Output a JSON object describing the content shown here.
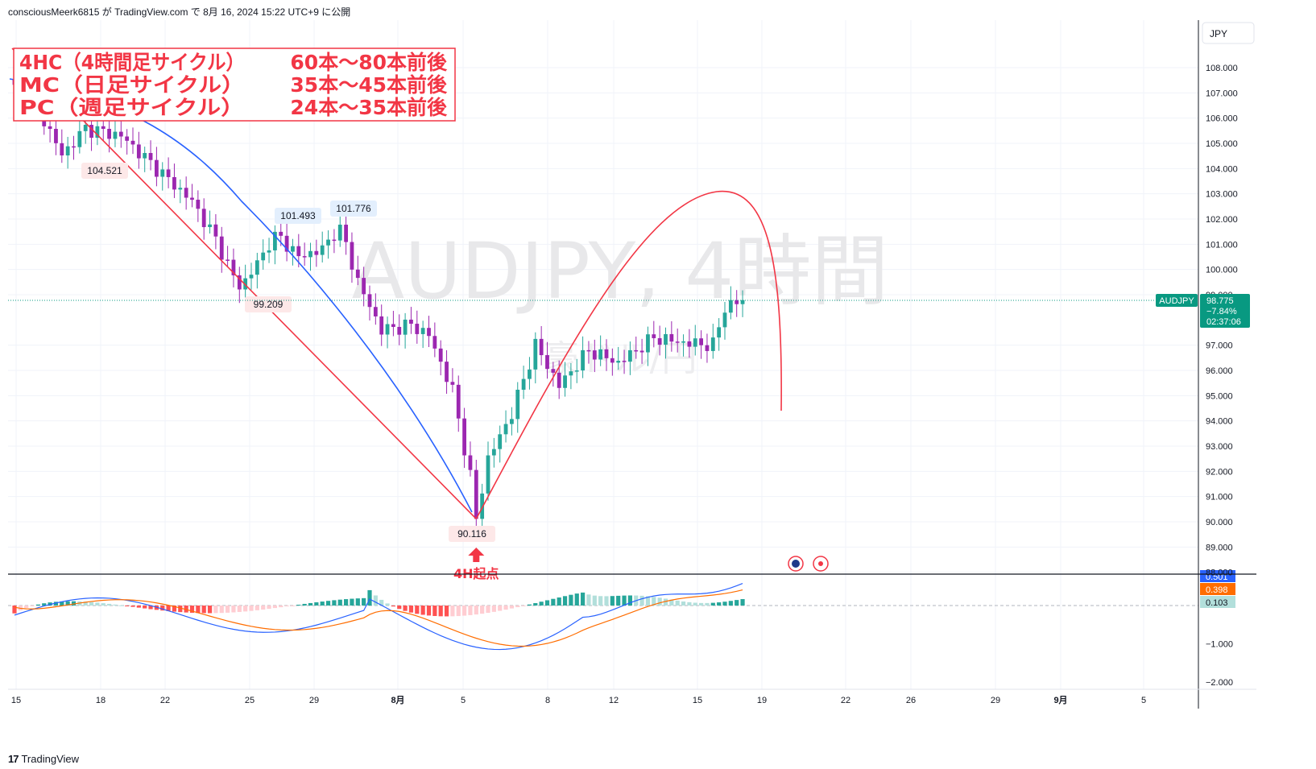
{
  "header": {
    "text": "consciousMeerk6815 が TradingView.com で 8月 16, 2024 15:22 UTC+9 に公開"
  },
  "currency_label": "JPY",
  "watermark": {
    "main": "AUDJPY, 4時間",
    "sub": "豪ドル/円"
  },
  "annotation_box": {
    "lines": [
      {
        "left": "4HC（4時間足サイクル）",
        "right": "60本〜80本前後"
      },
      {
        "left": "MC（日足サイクル）",
        "right": "35本〜45本前後"
      },
      {
        "left": "PC（週足サイクル）",
        "right": "24本〜35本前後"
      }
    ]
  },
  "current_price": {
    "symbol": "AUDJPY",
    "price": "98.775",
    "change": "−7.84%",
    "countdown": "02:37:06"
  },
  "footer": {
    "brand": "TradingView",
    "logo_glyph": "17"
  },
  "colors": {
    "bull": "#26a69a",
    "bear": "#9c27b0",
    "red_curve": "#f23645",
    "blue_ma": "#2962ff",
    "macd_line": "#2962ff",
    "signal_line": "#ff6d00"
  },
  "chart_data": [
    {
      "type": "candlestick",
      "title": "AUDJPY, 4時間",
      "ylabel": "JPY",
      "ylim": [
        87.8,
        108.8
      ],
      "y_ticks": [
        "108.000",
        "107.000",
        "106.000",
        "105.000",
        "104.000",
        "103.000",
        "102.000",
        "101.000",
        "100.000",
        "99.000",
        "97.000",
        "96.000",
        "95.000",
        "94.000",
        "93.000",
        "92.000",
        "91.000",
        "90.000",
        "89.000",
        "88.000"
      ],
      "x_ticks": [
        "15",
        "18",
        "22",
        "25",
        "29",
        "8月",
        "5",
        "8",
        "12",
        "15",
        "19",
        "22",
        "26",
        "29",
        "9月",
        "5"
      ],
      "price_labels": [
        {
          "label": "104.521",
          "value": 104.521
        },
        {
          "label": "99.209",
          "value": 99.209
        },
        {
          "label": "101.493",
          "value": 101.493
        },
        {
          "label": "101.776",
          "value": 101.776
        },
        {
          "label": "90.116",
          "value": 90.116
        }
      ],
      "key_prices": [
        {
          "t": 0,
          "p": 107.2
        },
        {
          "t": 4,
          "p": 106.4
        },
        {
          "t": 8,
          "p": 104.521
        },
        {
          "t": 12,
          "p": 105.6
        },
        {
          "t": 18,
          "p": 105.3
        },
        {
          "t": 24,
          "p": 104.0
        },
        {
          "t": 30,
          "p": 102.7
        },
        {
          "t": 34,
          "p": 101.2
        },
        {
          "t": 38,
          "p": 99.209
        },
        {
          "t": 42,
          "p": 100.6
        },
        {
          "t": 44,
          "p": 101.493
        },
        {
          "t": 48,
          "p": 100.5
        },
        {
          "t": 52,
          "p": 100.8
        },
        {
          "t": 55,
          "p": 101.776
        },
        {
          "t": 58,
          "p": 99.5
        },
        {
          "t": 62,
          "p": 97.6
        },
        {
          "t": 67,
          "p": 97.8
        },
        {
          "t": 70,
          "p": 97.4
        },
        {
          "t": 74,
          "p": 95.2
        },
        {
          "t": 77,
          "p": 91.8
        },
        {
          "t": 78,
          "p": 90.116
        },
        {
          "t": 80,
          "p": 92.5
        },
        {
          "t": 84,
          "p": 94.3
        },
        {
          "t": 88,
          "p": 97.0
        },
        {
          "t": 92,
          "p": 95.4
        },
        {
          "t": 97,
          "p": 96.8
        },
        {
          "t": 102,
          "p": 96.3
        },
        {
          "t": 108,
          "p": 97.3
        },
        {
          "t": 113,
          "p": 97.1
        },
        {
          "t": 118,
          "p": 97.0
        },
        {
          "t": 120,
          "p": 98.5
        },
        {
          "t": 123,
          "p": 98.775
        }
      ],
      "cycle_curve_label": "4HC",
      "bottom_marker_label": "4H起点"
    },
    {
      "type": "macd",
      "labels": [
        "0.501",
        "0.398",
        "0.103",
        "−1.000",
        "−2.000"
      ],
      "macd": 0.501,
      "signal": 0.398,
      "histogram": 0.103,
      "ylim": [
        -2.15,
        0.9
      ],
      "y_ticks": [
        "−1.000",
        "−2.000"
      ]
    }
  ]
}
